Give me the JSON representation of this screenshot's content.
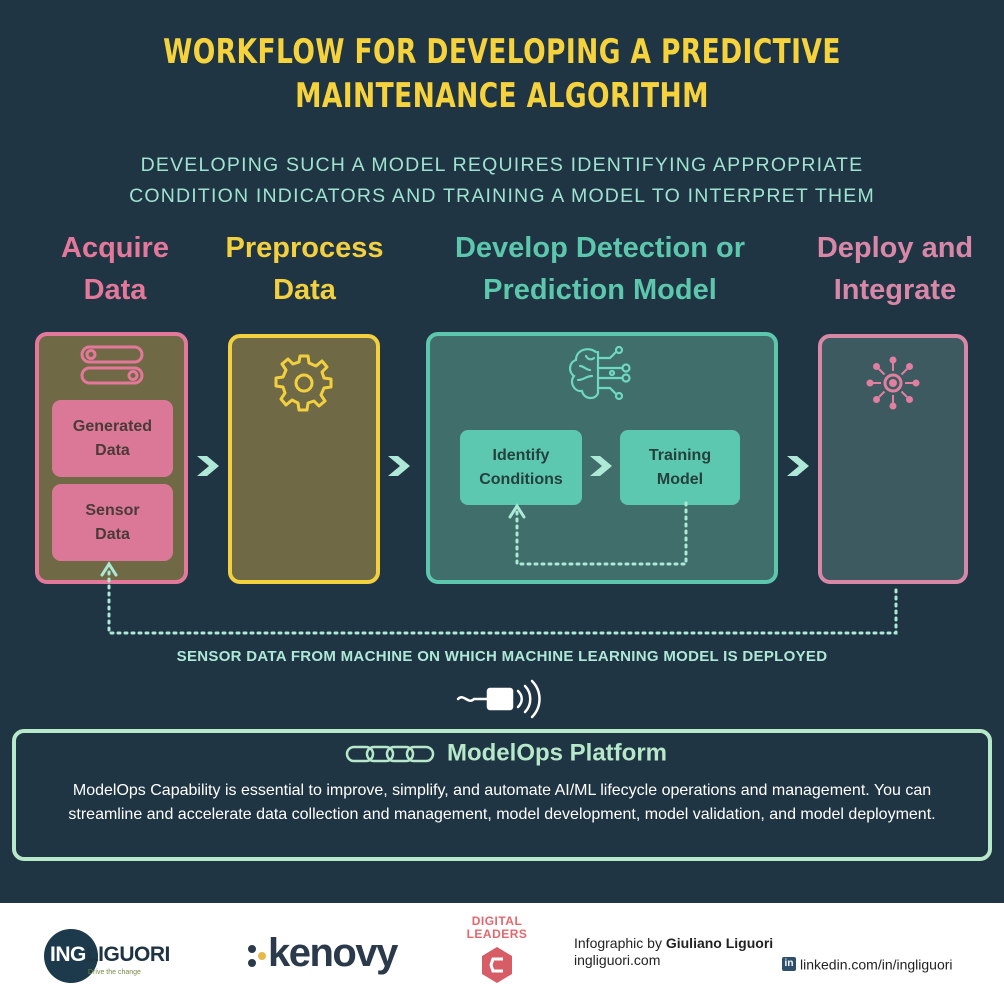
{
  "header": {
    "title_line1": "WORKFLOW FOR DEVELOPING A PREDICTIVE",
    "title_line2": "MAINTENANCE ALGORITHM",
    "subtitle_line1": "DEVELOPING SUCH A MODEL REQUIRES IDENTIFYING APPROPRIATE",
    "subtitle_line2": "CONDITION INDICATORS AND TRAINING A MODEL TO INTERPRET THEM"
  },
  "stages": [
    {
      "line1": "Acquire",
      "line2": "Data",
      "color": "#e4789a"
    },
    {
      "line1": "Preprocess",
      "line2": "Data",
      "color": "#f3d03f"
    },
    {
      "line1": "Develop Detection or",
      "line2": "Prediction Model",
      "color": "#5cc7ad"
    },
    {
      "line1": "Deploy and",
      "line2": "Integrate",
      "color": "#d987a7"
    }
  ],
  "acquire": {
    "generated_line1": "Generated",
    "generated_line2": "Data",
    "sensor_line1": "Sensor",
    "sensor_line2": "Data"
  },
  "model": {
    "identify_line1": "Identify",
    "identify_line2": "Conditions",
    "training_line1": "Training",
    "training_line2": "Model"
  },
  "sensor_caption": "SENSOR DATA FROM MACHINE ON WHICH MACHINE LEARNING MODEL IS DEPLOYED",
  "platform": {
    "title": "ModelOps Platform",
    "description": "ModelOps Capability is essential to improve, simplify, and automate AI/ML lifecycle operations and management. You can streamline and accelerate data collection and management, model development, model validation, and model deployment."
  },
  "footer": {
    "ingliguori_logo": "INGLIGUORI",
    "ingliguori_tagline": "Drive the change",
    "kenovy_logo": "kenovy",
    "digital_leaders_line1": "DIGITAL",
    "digital_leaders_line2": "LEADERS",
    "credit_prefix": "Infographic by ",
    "credit_name": "Giuliano Liguori",
    "credit_site": "ingliguori.com",
    "linkedin_badge": "in",
    "linkedin": "linkedin.com/in/ingliguori"
  },
  "icons": [
    "toggle-icon",
    "gear-icon",
    "brain-circuit-icon",
    "network-hub-icon",
    "chevron-right-icon",
    "sensor-signal-icon",
    "chain-links-icon",
    "linkedin-icon"
  ],
  "colors": {
    "background": "#203544",
    "title": "#f6d33c",
    "subtitle": "#9ee3cf",
    "acquire": "#e4789a",
    "preprocess": "#f3d03f",
    "develop": "#5cc7ad",
    "deploy": "#d987a7",
    "platform": "#b6e8c9"
  }
}
